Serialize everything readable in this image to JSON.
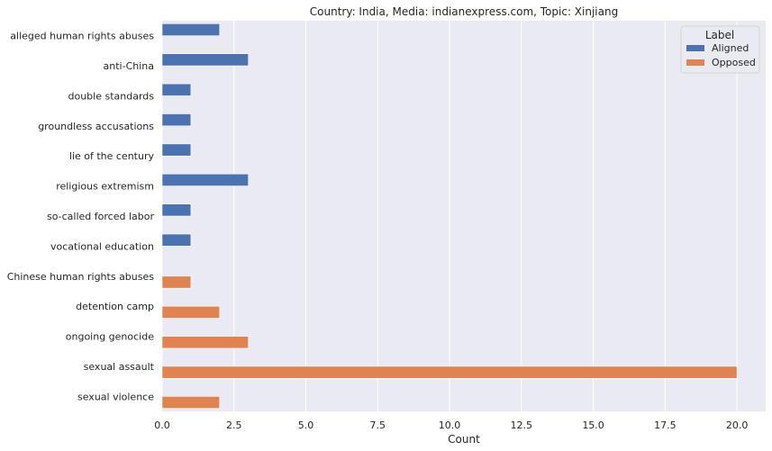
{
  "chart_data": {
    "type": "bar",
    "orientation": "horizontal",
    "title": "Country: India, Media: indianexpress.com, Topic: Xinjiang",
    "xlabel": "Count",
    "ylabel": "",
    "xlim": [
      0,
      21
    ],
    "xticks": [
      "0.0",
      "2.5",
      "5.0",
      "7.5",
      "10.0",
      "12.5",
      "15.0",
      "17.5",
      "20.0"
    ],
    "grid": true,
    "legend": {
      "title": "Label",
      "placement": "top-right",
      "entries": [
        "Aligned",
        "Opposed"
      ]
    },
    "categories": [
      "alleged human rights abuses",
      "anti-China",
      "double standards",
      "groundless accusations",
      "lie of the century",
      "religious extremism",
      "so-called forced labor",
      "vocational education",
      "Chinese human rights abuses",
      "detention camp",
      "ongoing genocide",
      "sexual assault",
      "sexual violence"
    ],
    "series": [
      {
        "name": "Aligned",
        "color": "#4c72b0",
        "values": [
          2,
          3,
          1,
          1,
          1,
          3,
          1,
          1,
          null,
          null,
          null,
          null,
          null
        ]
      },
      {
        "name": "Opposed",
        "color": "#dd8452",
        "values": [
          null,
          null,
          null,
          null,
          null,
          null,
          null,
          null,
          1,
          2,
          3,
          20,
          2
        ]
      }
    ]
  }
}
